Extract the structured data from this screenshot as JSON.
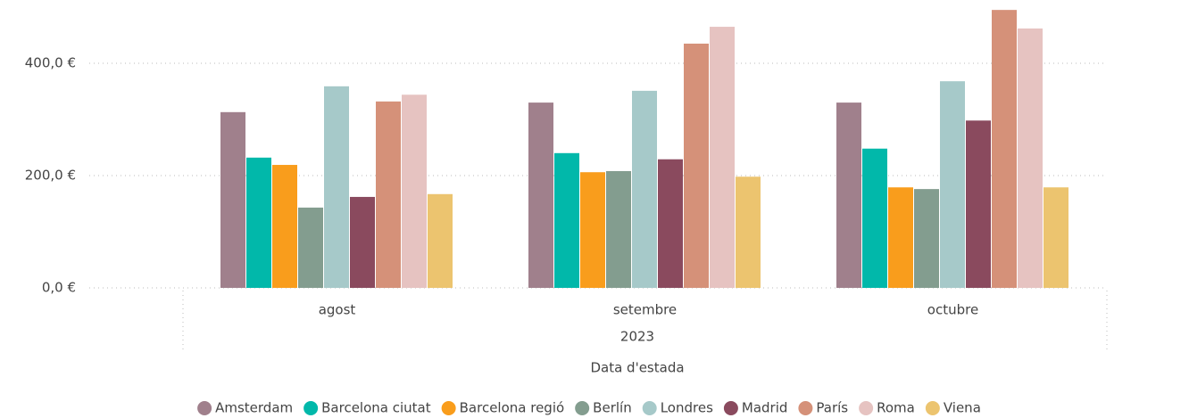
{
  "chart_data": {
    "type": "bar",
    "categories": [
      "agost",
      "setembre",
      "octubre"
    ],
    "category_group": "2023",
    "x_label": "Data d'estada",
    "ylim": [
      0,
      500
    ],
    "yticks": [
      {
        "value": 0,
        "label": "0,0 €"
      },
      {
        "value": 200,
        "label": "200,0 €"
      },
      {
        "value": 400,
        "label": "400,0 €"
      }
    ],
    "grid": true,
    "legend": "bottom",
    "series": [
      {
        "name": "Amsterdam",
        "color": "#a0808c",
        "values": [
          313,
          330,
          330
        ]
      },
      {
        "name": "Barcelona ciutat",
        "color": "#01b8aa",
        "values": [
          232,
          240,
          248
        ]
      },
      {
        "name": "Barcelona regió",
        "color": "#f99d1c",
        "values": [
          219,
          206,
          179
        ]
      },
      {
        "name": "Berlín",
        "color": "#839d8f",
        "values": [
          143,
          208,
          176
        ]
      },
      {
        "name": "Londres",
        "color": "#a6c9c9",
        "values": [
          359,
          351,
          368
        ]
      },
      {
        "name": "Madrid",
        "color": "#8a4a5e",
        "values": [
          162,
          229,
          298
        ]
      },
      {
        "name": "París",
        "color": "#d59179",
        "values": [
          332,
          435,
          495
        ]
      },
      {
        "name": "Roma",
        "color": "#e6c3c1",
        "values": [
          344,
          465,
          462
        ]
      },
      {
        "name": "Viena",
        "color": "#ecc46f",
        "values": [
          167,
          198,
          179
        ]
      }
    ]
  }
}
